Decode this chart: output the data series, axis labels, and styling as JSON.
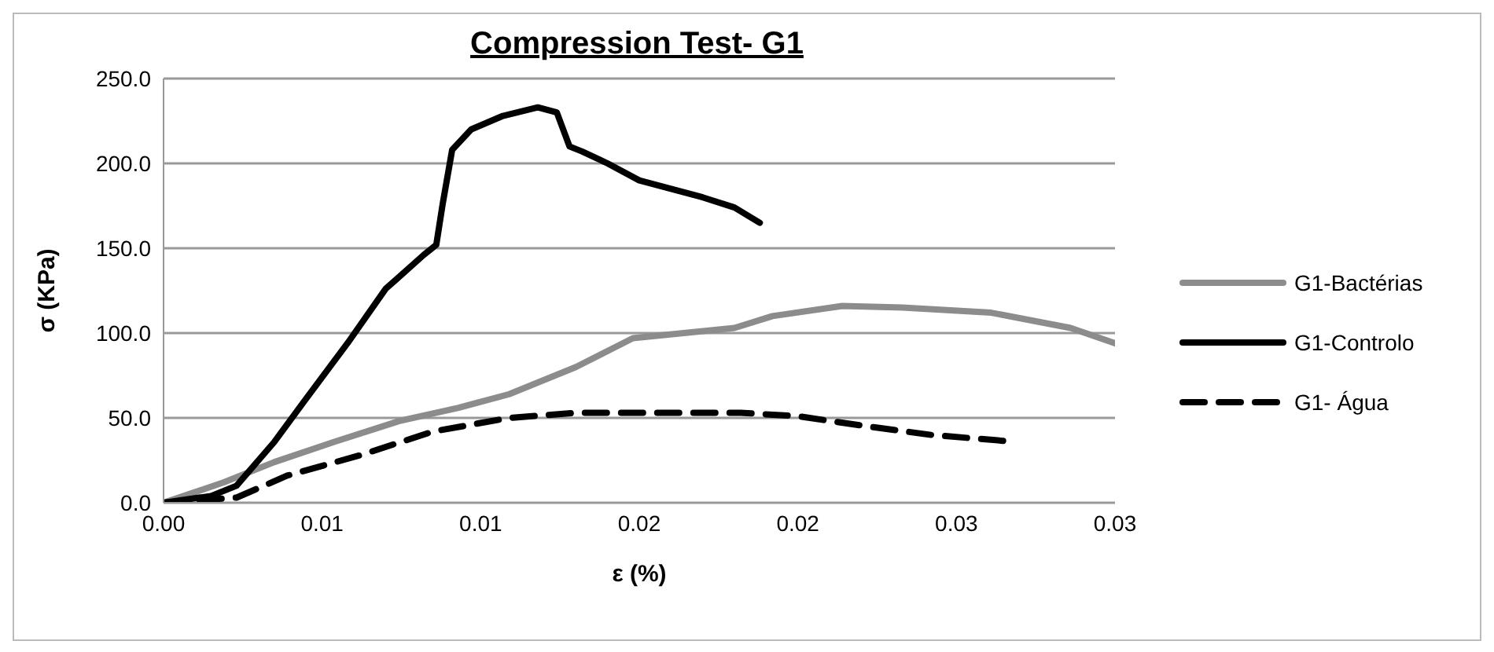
{
  "chart_data": {
    "type": "line",
    "title": "Compression Test- G1",
    "xlabel": "ε (%)",
    "ylabel": "σ (KPa)",
    "xlim": [
      0,
      0.03
    ],
    "xticks": [
      {
        "value": 0,
        "label": "0.00"
      },
      {
        "value": 0.005,
        "label": "0.01"
      },
      {
        "value": 0.01,
        "label": "0.01"
      },
      {
        "value": 0.015,
        "label": "0.02"
      },
      {
        "value": 0.02,
        "label": "0.02"
      },
      {
        "value": 0.025,
        "label": "0.03"
      },
      {
        "value": 0.03,
        "label": "0.03"
      }
    ],
    "ylim": [
      0,
      250
    ],
    "yticks": [
      {
        "value": 0,
        "label": "0.0"
      },
      {
        "value": 50,
        "label": "50.0"
      },
      {
        "value": 100,
        "label": "100.0"
      },
      {
        "value": 150,
        "label": "150.0"
      },
      {
        "value": 200,
        "label": "200.0"
      },
      {
        "value": 250,
        "label": "250.0"
      }
    ],
    "grid": "y",
    "legend": "right",
    "marker": "none",
    "series": [
      {
        "name": "G1-Bactérias",
        "color": "#8c8c8c",
        "line_style": "solid",
        "x": [
          0,
          0.0019,
          0.0035,
          0.0054,
          0.0074,
          0.0093,
          0.0109,
          0.013,
          0.0148,
          0.018,
          0.0192,
          0.0214,
          0.0233,
          0.0261,
          0.0286,
          0.03
        ],
        "values": [
          0,
          12,
          24,
          36,
          48,
          56,
          64,
          80,
          97,
          103,
          110,
          116,
          115,
          112,
          103,
          94
        ]
      },
      {
        "name": "G1-Controlo",
        "color": "#000000",
        "line_style": "solid",
        "x": [
          0,
          0.0015,
          0.0023,
          0.0035,
          0.0046,
          0.0058,
          0.007,
          0.0082,
          0.0086,
          0.0088,
          0.0091,
          0.0097,
          0.0107,
          0.0118,
          0.0124,
          0.0128,
          0.0132,
          0.014,
          0.015,
          0.016,
          0.017,
          0.018,
          0.0188
        ],
        "values": [
          0,
          4,
          10,
          36,
          64,
          94,
          126,
          146,
          152,
          176,
          208,
          220,
          228,
          233,
          230,
          210,
          207,
          200,
          190,
          185,
          180,
          174,
          165
        ]
      },
      {
        "name": "G1- Água",
        "color": "#000000",
        "line_style": "dashed",
        "x": [
          0,
          0.0023,
          0.0039,
          0.0062,
          0.0085,
          0.0109,
          0.013,
          0.0182,
          0.02,
          0.0222,
          0.0242,
          0.0268
        ],
        "values": [
          0,
          3,
          16,
          28,
          42,
          50,
          53,
          53,
          51,
          45,
          40,
          36
        ]
      }
    ]
  }
}
